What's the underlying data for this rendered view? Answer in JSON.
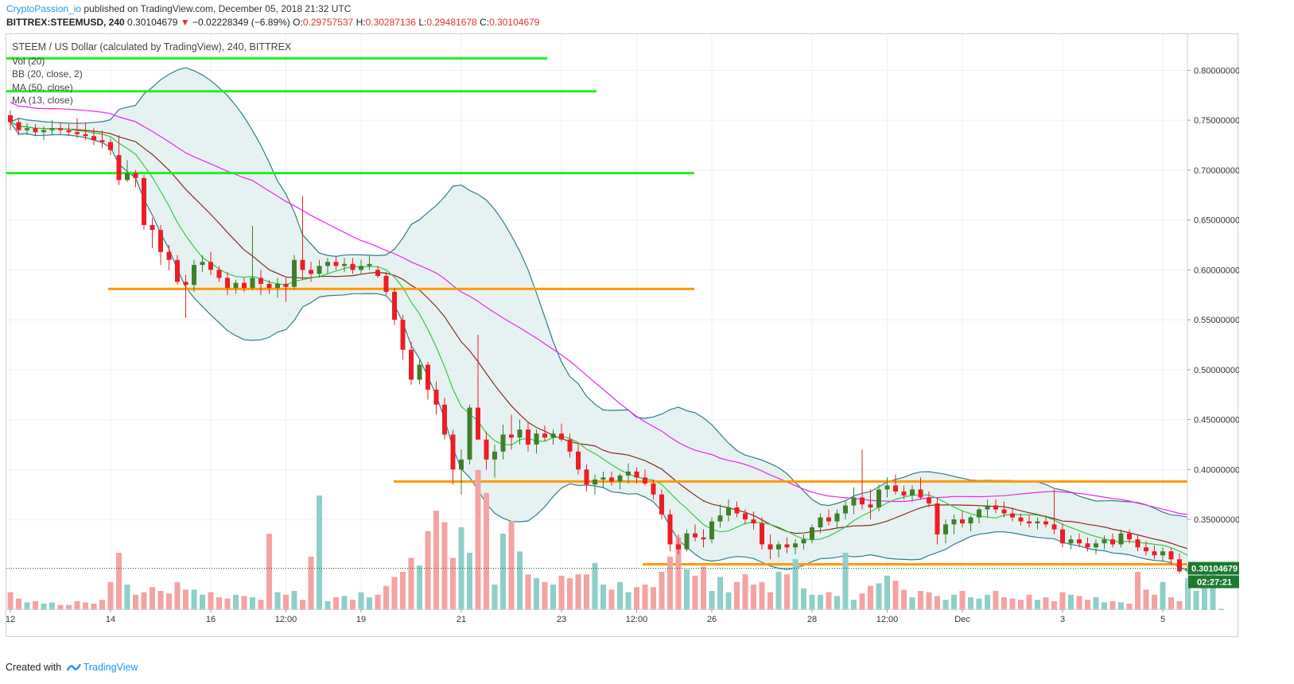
{
  "header": {
    "publisher": "CryptoPassion_io",
    "published_text": " published on TradingView.com, December 05, 2018 21:32 UTC",
    "symbol": "BITTREX:STEEMUSD, 240",
    "last": "0.30104679",
    "arrow": "▼",
    "change": "−0.02228349 (−6.89%)",
    "o_label": "O:",
    "o_val": "0.29757537",
    "h_label": "H:",
    "h_val": "0.30287136",
    "l_label": "L:",
    "l_val": "0.29481678",
    "c_label": "C:",
    "c_val": "0.30104679"
  },
  "legend": {
    "title": "STEEM / US Dollar (calculated by TradingView), 240, BITTREX",
    "vol": "Vol (20)",
    "bb": "BB (20, close, 2)",
    "ma50": "MA (50, close)",
    "ma13": "MA (13, close)"
  },
  "footer": {
    "created": "Created with",
    "brand": "TradingView"
  },
  "colors": {
    "up": "#3f7f2a",
    "down": "#ee1c25",
    "bb": "#2b7f8c",
    "bb_fill": "#dcecec",
    "ma13": "#2ecc40",
    "ma50": "#8b2a1a",
    "ma100": "#ee22ee",
    "green_level": "#22ee22",
    "orange_level": "#ff9900",
    "vol_up": "#8ecfc9",
    "vol_down": "#f4a3a3",
    "price_tag": "#1b7a2f"
  },
  "chart_data": {
    "type": "candlestick",
    "y_axis": {
      "min": 0.26,
      "max": 0.825,
      "ticks": [
        "0.80000000",
        "0.75000000",
        "0.70000000",
        "0.65000000",
        "0.60000000",
        "0.55000000",
        "0.50000000",
        "0.45000000",
        "0.40000000",
        "0.35000000"
      ]
    },
    "x_axis": {
      "ticks": [
        "12",
        "14",
        "16",
        "12:00",
        "19",
        "21",
        "23",
        "12:00",
        "26",
        "28",
        "12:00",
        "Dec",
        "3",
        "5"
      ]
    },
    "last_price_label": "0.30104679",
    "countdown_label": "02:27:21",
    "candles": [
      [
        0.755,
        0.76,
        0.74,
        0.748
      ],
      [
        0.748,
        0.752,
        0.735,
        0.74
      ],
      [
        0.74,
        0.747,
        0.735,
        0.742
      ],
      [
        0.742,
        0.746,
        0.735,
        0.738
      ],
      [
        0.738,
        0.744,
        0.73,
        0.74
      ],
      [
        0.74,
        0.75,
        0.735,
        0.742
      ],
      [
        0.742,
        0.748,
        0.736,
        0.74
      ],
      [
        0.74,
        0.746,
        0.734,
        0.738
      ],
      [
        0.738,
        0.752,
        0.732,
        0.736
      ],
      [
        0.736,
        0.748,
        0.73,
        0.734
      ],
      [
        0.734,
        0.742,
        0.725,
        0.73
      ],
      [
        0.73,
        0.74,
        0.722,
        0.728
      ],
      [
        0.728,
        0.732,
        0.715,
        0.72
      ],
      [
        0.715,
        0.735,
        0.685,
        0.69
      ],
      [
        0.69,
        0.71,
        0.688,
        0.697
      ],
      [
        0.697,
        0.7,
        0.683,
        0.692
      ],
      [
        0.692,
        0.695,
        0.64,
        0.645
      ],
      [
        0.645,
        0.652,
        0.622,
        0.64
      ],
      [
        0.64,
        0.645,
        0.605,
        0.618
      ],
      [
        0.618,
        0.625,
        0.6,
        0.61
      ],
      [
        0.61,
        0.615,
        0.585,
        0.588
      ],
      [
        0.588,
        0.595,
        0.552,
        0.585
      ],
      [
        0.585,
        0.61,
        0.578,
        0.605
      ],
      [
        0.605,
        0.615,
        0.598,
        0.608
      ],
      [
        0.608,
        0.618,
        0.595,
        0.6
      ],
      [
        0.6,
        0.604,
        0.588,
        0.592
      ],
      [
        0.592,
        0.598,
        0.575,
        0.582
      ],
      [
        0.582,
        0.59,
        0.576,
        0.587
      ],
      [
        0.587,
        0.592,
        0.578,
        0.582
      ],
      [
        0.582,
        0.644,
        0.58,
        0.592
      ],
      [
        0.592,
        0.6,
        0.575,
        0.586
      ],
      [
        0.586,
        0.59,
        0.576,
        0.582
      ],
      [
        0.582,
        0.592,
        0.572,
        0.586
      ],
      [
        0.586,
        0.592,
        0.568,
        0.583
      ],
      [
        0.583,
        0.615,
        0.58,
        0.61
      ],
      [
        0.61,
        0.674,
        0.59,
        0.6
      ],
      [
        0.6,
        0.608,
        0.588,
        0.596
      ],
      [
        0.596,
        0.61,
        0.592,
        0.604
      ],
      [
        0.604,
        0.612,
        0.596,
        0.608
      ],
      [
        0.608,
        0.614,
        0.6,
        0.604
      ],
      [
        0.604,
        0.612,
        0.598,
        0.606
      ],
      [
        0.606,
        0.612,
        0.596,
        0.6
      ],
      [
        0.6,
        0.61,
        0.596,
        0.604
      ],
      [
        0.604,
        0.614,
        0.6,
        0.606
      ],
      [
        0.6,
        0.604,
        0.592,
        0.594
      ],
      [
        0.594,
        0.598,
        0.575,
        0.578
      ],
      [
        0.578,
        0.582,
        0.545,
        0.55
      ],
      [
        0.55,
        0.555,
        0.51,
        0.52
      ],
      [
        0.52,
        0.528,
        0.485,
        0.49
      ],
      [
        0.49,
        0.51,
        0.485,
        0.505
      ],
      [
        0.505,
        0.508,
        0.47,
        0.48
      ],
      [
        0.48,
        0.488,
        0.455,
        0.465
      ],
      [
        0.465,
        0.472,
        0.43,
        0.435
      ],
      [
        0.435,
        0.44,
        0.385,
        0.4
      ],
      [
        0.4,
        0.42,
        0.375,
        0.41
      ],
      [
        0.41,
        0.465,
        0.405,
        0.462
      ],
      [
        0.462,
        0.535,
        0.43,
        0.43
      ],
      [
        0.43,
        0.438,
        0.4,
        0.41
      ],
      [
        0.41,
        0.425,
        0.392,
        0.418
      ],
      [
        0.418,
        0.445,
        0.41,
        0.435
      ],
      [
        0.435,
        0.455,
        0.42,
        0.432
      ],
      [
        0.432,
        0.45,
        0.425,
        0.44
      ],
      [
        0.44,
        0.448,
        0.418,
        0.425
      ],
      [
        0.425,
        0.44,
        0.416,
        0.436
      ],
      [
        0.436,
        0.444,
        0.428,
        0.432
      ],
      [
        0.432,
        0.44,
        0.425,
        0.436
      ],
      [
        0.436,
        0.446,
        0.428,
        0.43
      ],
      [
        0.43,
        0.436,
        0.412,
        0.418
      ],
      [
        0.418,
        0.425,
        0.395,
        0.4
      ],
      [
        0.4,
        0.405,
        0.378,
        0.385
      ],
      [
        0.385,
        0.395,
        0.375,
        0.39
      ],
      [
        0.39,
        0.398,
        0.382,
        0.392
      ],
      [
        0.392,
        0.398,
        0.384,
        0.388
      ],
      [
        0.388,
        0.396,
        0.38,
        0.394
      ],
      [
        0.394,
        0.406,
        0.386,
        0.398
      ],
      [
        0.398,
        0.402,
        0.386,
        0.392
      ],
      [
        0.392,
        0.4,
        0.384,
        0.386
      ],
      [
        0.386,
        0.39,
        0.37,
        0.375
      ],
      [
        0.375,
        0.38,
        0.35,
        0.355
      ],
      [
        0.355,
        0.36,
        0.318,
        0.325
      ],
      [
        0.325,
        0.335,
        0.315,
        0.32
      ],
      [
        0.32,
        0.34,
        0.318,
        0.336
      ],
      [
        0.336,
        0.345,
        0.328,
        0.332
      ],
      [
        0.332,
        0.34,
        0.322,
        0.33
      ],
      [
        0.33,
        0.352,
        0.326,
        0.348
      ],
      [
        0.348,
        0.365,
        0.342,
        0.354
      ],
      [
        0.354,
        0.37,
        0.348,
        0.362
      ],
      [
        0.362,
        0.368,
        0.352,
        0.356
      ],
      [
        0.356,
        0.36,
        0.345,
        0.35
      ],
      [
        0.35,
        0.358,
        0.34,
        0.346
      ],
      [
        0.346,
        0.352,
        0.32,
        0.325
      ],
      [
        0.325,
        0.335,
        0.31,
        0.32
      ],
      [
        0.32,
        0.328,
        0.312,
        0.325
      ],
      [
        0.325,
        0.332,
        0.316,
        0.322
      ],
      [
        0.322,
        0.33,
        0.315,
        0.326
      ],
      [
        0.326,
        0.335,
        0.32,
        0.33
      ],
      [
        0.33,
        0.345,
        0.326,
        0.342
      ],
      [
        0.342,
        0.356,
        0.336,
        0.352
      ],
      [
        0.352,
        0.36,
        0.344,
        0.348
      ],
      [
        0.348,
        0.36,
        0.342,
        0.356
      ],
      [
        0.356,
        0.368,
        0.35,
        0.364
      ],
      [
        0.364,
        0.382,
        0.355,
        0.372
      ],
      [
        0.372,
        0.42,
        0.36,
        0.365
      ],
      [
        0.365,
        0.38,
        0.35,
        0.362
      ],
      [
        0.362,
        0.385,
        0.358,
        0.38
      ],
      [
        0.38,
        0.392,
        0.372,
        0.384
      ],
      [
        0.384,
        0.395,
        0.375,
        0.378
      ],
      [
        0.378,
        0.384,
        0.37,
        0.374
      ],
      [
        0.374,
        0.384,
        0.368,
        0.38
      ],
      [
        0.38,
        0.392,
        0.37,
        0.372
      ],
      [
        0.372,
        0.378,
        0.362,
        0.366
      ],
      [
        0.366,
        0.372,
        0.325,
        0.335
      ],
      [
        0.335,
        0.35,
        0.326,
        0.345
      ],
      [
        0.345,
        0.355,
        0.335,
        0.35
      ],
      [
        0.35,
        0.358,
        0.342,
        0.346
      ],
      [
        0.346,
        0.354,
        0.338,
        0.352
      ],
      [
        0.352,
        0.362,
        0.346,
        0.36
      ],
      [
        0.36,
        0.37,
        0.352,
        0.364
      ],
      [
        0.364,
        0.37,
        0.356,
        0.36
      ],
      [
        0.36,
        0.368,
        0.352,
        0.356
      ],
      [
        0.356,
        0.362,
        0.348,
        0.352
      ],
      [
        0.352,
        0.356,
        0.344,
        0.348
      ],
      [
        0.348,
        0.354,
        0.342,
        0.346
      ],
      [
        0.346,
        0.352,
        0.34,
        0.348
      ],
      [
        0.348,
        0.354,
        0.342,
        0.345
      ],
      [
        0.345,
        0.38,
        0.335,
        0.34
      ],
      [
        0.34,
        0.346,
        0.322,
        0.326
      ],
      [
        0.326,
        0.334,
        0.32,
        0.33
      ],
      [
        0.33,
        0.336,
        0.322,
        0.326
      ],
      [
        0.326,
        0.332,
        0.318,
        0.322
      ],
      [
        0.322,
        0.33,
        0.315,
        0.326
      ],
      [
        0.326,
        0.334,
        0.32,
        0.33
      ],
      [
        0.33,
        0.336,
        0.322,
        0.325
      ],
      [
        0.325,
        0.34,
        0.322,
        0.336
      ],
      [
        0.336,
        0.34,
        0.326,
        0.33
      ],
      [
        0.33,
        0.334,
        0.318,
        0.322
      ],
      [
        0.322,
        0.328,
        0.314,
        0.318
      ],
      [
        0.318,
        0.324,
        0.31,
        0.314
      ],
      [
        0.314,
        0.322,
        0.308,
        0.318
      ],
      [
        0.318,
        0.322,
        0.305,
        0.31
      ],
      [
        0.31,
        0.316,
        0.296,
        0.298
      ],
      [
        0.298,
        0.304,
        0.295,
        0.301
      ]
    ],
    "volume": [
      14,
      9,
      6,
      7,
      5,
      6,
      4,
      4,
      7,
      6,
      5,
      8,
      22,
      45,
      20,
      12,
      14,
      18,
      15,
      13,
      22,
      16,
      16,
      12,
      14,
      10,
      9,
      12,
      11,
      10,
      8,
      60,
      14,
      12,
      15,
      8,
      42,
      90,
      7,
      10,
      11,
      8,
      14,
      10,
      12,
      19,
      26,
      30,
      41,
      35,
      62,
      78,
      69,
      41,
      65,
      45,
      110,
      92,
      20,
      60,
      70,
      46,
      28,
      25,
      22,
      20,
      27,
      25,
      28,
      28,
      37,
      20,
      16,
      22,
      14,
      18,
      20,
      18,
      30,
      42,
      57,
      32,
      27,
      34,
      15,
      26,
      14,
      22,
      28,
      20,
      22,
      14,
      30,
      28,
      40,
      17,
      12,
      12,
      14,
      11,
      45,
      8,
      13,
      19,
      21,
      27,
      23,
      16,
      10,
      15,
      14,
      11,
      8,
      12,
      15,
      10,
      9,
      12,
      15,
      10,
      9,
      8,
      12,
      8,
      10,
      7,
      14,
      12,
      11,
      8,
      10,
      6,
      7,
      6,
      5,
      30,
      16,
      12,
      22,
      10,
      7,
      25,
      15,
      28,
      37,
      1
    ]
  }
}
